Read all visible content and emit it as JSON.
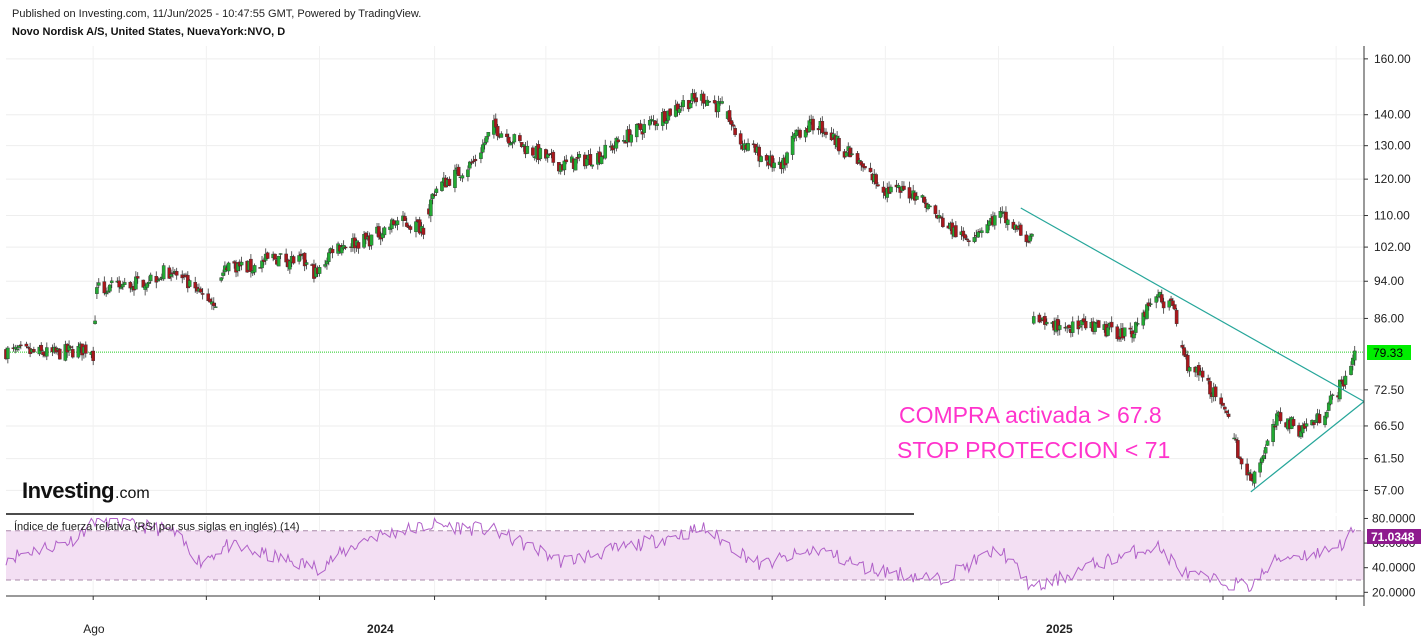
{
  "header": {
    "published": "Published on Investing.com, 11/Jun/2025 - 10:47:55 GMT, Powered by TradingView.",
    "symbol": "Novo Nordisk A/S, United States, NuevaYork:NVO, D"
  },
  "logo": {
    "main": "Investing",
    "suffix": ".com"
  },
  "annotations": {
    "line1": "COMPRA activada > 67.8",
    "line2": "STOP PROTECCION < 71"
  },
  "colors": {
    "up": "#22aa33",
    "down": "#a8171c",
    "trendline": "#26a69a",
    "annotation": "#ff33cc",
    "last_price_badge": "#00ee00",
    "rsi_line": "#b060c8",
    "rsi_band": "#f3dff3",
    "rsi_badge": "#8e1a8e"
  },
  "chart_data": [
    {
      "type": "candlestick",
      "title": "Novo Nordisk A/S, United States, NuevaYork:NVO, D",
      "y_scale": "log",
      "ylim": [
        54,
        165
      ],
      "y_ticks": [
        "57.00",
        "61.50",
        "66.50",
        "72.50",
        "79.33",
        "86.00",
        "94.00",
        "102.00",
        "110.00",
        "120.00",
        "130.00",
        "140.00",
        "160.00"
      ],
      "x_ticks": [
        "Ago",
        "2024",
        "2025"
      ],
      "last_price": "79.33",
      "horizontal_line": 79.33,
      "trendlines": [
        {
          "from": [
            "2024-12-13",
            112
          ],
          "to": [
            "2025-06-16",
            70.5
          ]
        },
        {
          "from": [
            "2025-04-16",
            56.8
          ],
          "to": [
            "2025-06-16",
            70.5
          ]
        }
      ],
      "series_closes": [
        [
          "2023-06-15",
          79.5
        ],
        [
          "2023-07-10",
          79.0
        ],
        [
          "2023-07-28",
          80.0
        ],
        [
          "2023-08-01",
          79.0
        ],
        [
          "2023-08-03",
          92.0
        ],
        [
          "2023-08-20",
          93.0
        ],
        [
          "2023-09-12",
          96.5
        ],
        [
          "2023-09-25",
          91.5
        ],
        [
          "2023-10-06",
          89.5
        ],
        [
          "2023-10-12",
          98.0
        ],
        [
          "2023-10-25",
          97.0
        ],
        [
          "2023-11-06",
          99.5
        ],
        [
          "2023-11-22",
          98.5
        ],
        [
          "2023-11-30",
          95.5
        ],
        [
          "2023-12-08",
          102.0
        ],
        [
          "2023-12-28",
          104.0
        ],
        [
          "2024-01-12",
          108.5
        ],
        [
          "2024-01-26",
          107.0
        ],
        [
          "2024-02-01",
          117.0
        ],
        [
          "2024-02-22",
          125.0
        ],
        [
          "2024-03-04",
          136.0
        ],
        [
          "2024-03-22",
          129.0
        ],
        [
          "2024-04-10",
          124.0
        ],
        [
          "2024-04-30",
          127.0
        ],
        [
          "2024-05-15",
          133.0
        ],
        [
          "2024-05-30",
          138.0
        ],
        [
          "2024-06-14",
          144.0
        ],
        [
          "2024-06-25",
          146.0
        ],
        [
          "2024-07-05",
          142.0
        ],
        [
          "2024-07-15",
          131.0
        ],
        [
          "2024-07-26",
          127.0
        ],
        [
          "2024-08-06",
          122.5
        ],
        [
          "2024-08-14",
          134.5
        ],
        [
          "2024-08-26",
          137.0
        ],
        [
          "2024-09-05",
          131.0
        ],
        [
          "2024-09-20",
          122.5
        ],
        [
          "2024-10-01",
          117.0
        ],
        [
          "2024-10-18",
          116.0
        ],
        [
          "2024-10-30",
          109.0
        ],
        [
          "2024-11-12",
          104.0
        ],
        [
          "2024-11-22",
          107.0
        ],
        [
          "2024-12-02",
          110.0
        ],
        [
          "2024-12-18",
          103.5
        ],
        [
          "2024-12-20",
          85.0
        ],
        [
          "2025-01-06",
          84.5
        ],
        [
          "2025-01-20",
          84.0
        ],
        [
          "2025-02-10",
          83.0
        ],
        [
          "2025-02-24",
          91.0
        ],
        [
          "2025-03-06",
          88.0
        ],
        [
          "2025-03-12",
          77.5
        ],
        [
          "2025-03-25",
          73.0
        ],
        [
          "2025-04-04",
          67.0
        ],
        [
          "2025-04-10",
          61.5
        ],
        [
          "2025-04-16",
          58.5
        ],
        [
          "2025-04-24",
          63.0
        ],
        [
          "2025-05-01",
          68.0
        ],
        [
          "2025-05-12",
          66.0
        ],
        [
          "2025-05-22",
          67.5
        ],
        [
          "2025-05-30",
          71.0
        ],
        [
          "2025-06-05",
          74.0
        ],
        [
          "2025-06-11",
          79.33
        ]
      ]
    },
    {
      "type": "line",
      "title": "Índice de fuerza relativa (RSI por sus siglas en inglés) (14)",
      "ylim": [
        17,
        82
      ],
      "y_ticks": [
        "20.0000",
        "40.0000",
        "60.0000",
        "80.0000"
      ],
      "bands": [
        30,
        70
      ],
      "last_value": "71.0348",
      "series_points": [
        [
          "2023-06-15",
          48
        ],
        [
          "2023-07-20",
          62
        ],
        [
          "2023-08-03",
          80
        ],
        [
          "2023-09-12",
          70
        ],
        [
          "2023-09-28",
          45
        ],
        [
          "2023-10-12",
          58
        ],
        [
          "2023-11-30",
          40
        ],
        [
          "2023-12-28",
          65
        ],
        [
          "2024-02-01",
          75
        ],
        [
          "2024-03-04",
          70
        ],
        [
          "2024-04-10",
          45
        ],
        [
          "2024-05-30",
          62
        ],
        [
          "2024-06-25",
          72
        ],
        [
          "2024-07-26",
          42
        ],
        [
          "2024-08-26",
          55
        ],
        [
          "2024-09-20",
          40
        ],
        [
          "2024-10-30",
          30
        ],
        [
          "2024-11-22",
          48
        ],
        [
          "2024-12-02",
          55
        ],
        [
          "2024-12-20",
          22
        ],
        [
          "2025-01-20",
          42
        ],
        [
          "2025-02-24",
          58
        ],
        [
          "2025-03-12",
          35
        ],
        [
          "2025-03-25",
          30
        ],
        [
          "2025-04-16",
          25
        ],
        [
          "2025-05-01",
          48
        ],
        [
          "2025-05-22",
          52
        ],
        [
          "2025-06-05",
          60
        ],
        [
          "2025-06-11",
          71.03
        ]
      ]
    }
  ]
}
